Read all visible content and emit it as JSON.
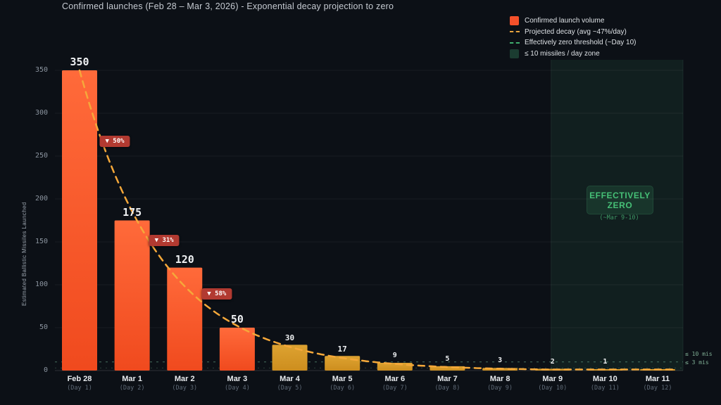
{
  "title": "Confirmed launches (Feb 28 – Mar 3, 2026) - Exponential decay projection to zero",
  "ylabel": "Estimated Ballistic Missiles Launched",
  "legend": {
    "items": [
      {
        "label": "Confirmed launch volume",
        "type": "bar-swatch",
        "color": "#f4502a"
      },
      {
        "label": "Projected decay (avg ~47%/day)",
        "type": "dashed-line",
        "color": "#e8a33d"
      },
      {
        "label": "Effectively zero threshold (~Day 10)",
        "type": "dashed-line",
        "color": "#3fae6e"
      },
      {
        "label": "≤ 10 missiles / day zone",
        "type": "zone-swatch",
        "color": "#23483a"
      }
    ]
  },
  "chart_data": {
    "type": "bar",
    "title": "Confirmed launches (Feb 28 – Mar 3, 2026) - Exponential decay projection to zero",
    "xlabel": "",
    "ylabel": "Estimated Ballistic Missiles Launched",
    "categories": [
      "Feb 28",
      "Mar 1",
      "Mar 2",
      "Mar 3",
      "Mar 4",
      "Mar 5",
      "Mar 6",
      "Mar 7",
      "Mar 8",
      "Mar 9",
      "Mar 10",
      "Mar 11"
    ],
    "day_labels": [
      "(Day 1)",
      "(Day 2)",
      "(Day 3)",
      "(Day 4)",
      "(Day 5)",
      "(Day 6)",
      "(Day 7)",
      "(Day 8)",
      "(Day 9)",
      "(Day 10)",
      "(Day 11)",
      "(Day 12)"
    ],
    "values": [
      350,
      175,
      120,
      50,
      30,
      17,
      9,
      5,
      3,
      2,
      1,
      0.5
    ],
    "bar_labels": [
      "350",
      "175",
      "120",
      "50",
      "30",
      "17",
      "9",
      "5",
      "3",
      "2",
      "1",
      ""
    ],
    "confirmed_bar_count": 4,
    "ylim": [
      0,
      350
    ],
    "yticks": [
      0,
      50,
      100,
      150,
      200,
      250,
      300,
      350
    ],
    "grid": "horizontal",
    "legend_position": "top-right",
    "projection": {
      "start_value": 350,
      "daily_decay_pct": 47
    },
    "threshold_line_value": 10,
    "secondary_threshold_value": 3,
    "zone": {
      "start_category": "Mar 9",
      "start_day_index": 9,
      "label": "≤ 10 missiles / day zone"
    },
    "colors": {
      "confirmed_bar": "#f85427",
      "projected_bar": "#d6992a",
      "decay_curve": "#f5a83a",
      "threshold": "#6fbf97",
      "badge": "#b23a31"
    }
  },
  "badges": [
    {
      "text": "▼ 50%",
      "day": 0.67,
      "value": 267
    },
    {
      "text": "▼ 31%",
      "day": 1.61,
      "value": 152
    },
    {
      "text": "▼ 58%",
      "day": 2.61,
      "value": 89
    }
  ],
  "zero_box": {
    "line1": "EFFECTIVELY",
    "line2": "ZERO",
    "subtitle": "(~Mar 9-10)"
  },
  "annotations": {
    "right_top": "≤ 10 mis",
    "right_bottom": "≤ 3 mis"
  }
}
